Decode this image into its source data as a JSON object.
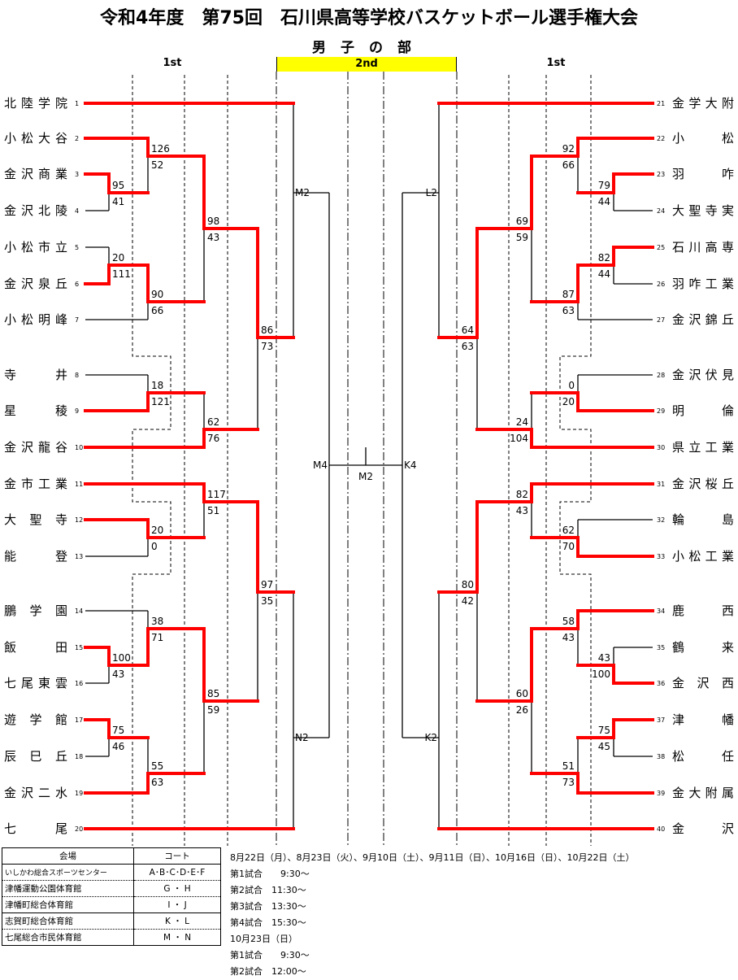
{
  "title": "令和4年度　第75回　石川県高等学校バスケットボール選手権大会",
  "division": "男子の部",
  "rounds": {
    "left": "1st",
    "center": "2nd",
    "right": "1st"
  },
  "colors": {
    "winner_line": "#ff0000",
    "round2_bar": "#ffff00",
    "line": "#000000"
  },
  "left": {
    "teams": [
      {
        "no": "1",
        "name": "北陸学院"
      },
      {
        "no": "2",
        "name": "小松大谷"
      },
      {
        "no": "3",
        "name": "金沢商業"
      },
      {
        "no": "4",
        "name": "金沢北陵"
      },
      {
        "no": "5",
        "name": "小松市立"
      },
      {
        "no": "6",
        "name": "金沢泉丘"
      },
      {
        "no": "7",
        "name": "小松明峰"
      },
      {
        "no": "8",
        "name": "寺井"
      },
      {
        "no": "9",
        "name": "星稜"
      },
      {
        "no": "10",
        "name": "金沢龍谷"
      },
      {
        "no": "11",
        "name": "金市工業"
      },
      {
        "no": "12",
        "name": "大聖寺"
      },
      {
        "no": "13",
        "name": "能登"
      },
      {
        "no": "14",
        "name": "鵬学園"
      },
      {
        "no": "15",
        "name": "飯田"
      },
      {
        "no": "16",
        "name": "七尾東雲"
      },
      {
        "no": "17",
        "name": "遊学館"
      },
      {
        "no": "18",
        "name": "辰巳丘"
      },
      {
        "no": "19",
        "name": "金沢二水"
      },
      {
        "no": "20",
        "name": "七尾"
      }
    ],
    "matches": {
      "R1a": {
        "scores": [
          "95",
          "41"
        ]
      },
      "R1b": {
        "scores": [
          "20",
          "111"
        ]
      },
      "R1c": {
        "scores": [
          "100",
          "43"
        ]
      },
      "R1d": {
        "scores": [
          "75",
          "46"
        ]
      },
      "R2a": {
        "scores": [
          "126",
          "52"
        ]
      },
      "R2b": {
        "scores": [
          "90",
          "66"
        ]
      },
      "R2c": {
        "scores": [
          "18",
          "121"
        ]
      },
      "R2d": {
        "scores": [
          "20",
          "0"
        ]
      },
      "R2e": {
        "scores": [
          "38",
          "71"
        ]
      },
      "R2f": {
        "scores": [
          "55",
          "63"
        ]
      },
      "R3a": {
        "scores": [
          "98",
          "43"
        ]
      },
      "R3b": {
        "scores": [
          "62",
          "76"
        ]
      },
      "R3c": {
        "scores": [
          "117",
          "51"
        ]
      },
      "R3d": {
        "scores": [
          "85",
          "59"
        ]
      },
      "R4a": {
        "scores": [
          "86",
          "73"
        ]
      },
      "R4b": {
        "scores": [
          "97",
          "35"
        ]
      },
      "R5a": {
        "court": "M2"
      },
      "R5b": {
        "court": "N2"
      },
      "F": {
        "court": "M4"
      }
    }
  },
  "right": {
    "teams": [
      {
        "no": "21",
        "name": "金学大附"
      },
      {
        "no": "22",
        "name": "小松"
      },
      {
        "no": "23",
        "name": "羽咋"
      },
      {
        "no": "24",
        "name": "大聖寺実"
      },
      {
        "no": "25",
        "name": "石川高専"
      },
      {
        "no": "26",
        "name": "羽咋工業"
      },
      {
        "no": "27",
        "name": "金沢錦丘"
      },
      {
        "no": "28",
        "name": "金沢伏見"
      },
      {
        "no": "29",
        "name": "明倫"
      },
      {
        "no": "30",
        "name": "県立工業"
      },
      {
        "no": "31",
        "name": "金沢桜丘"
      },
      {
        "no": "32",
        "name": "輪島"
      },
      {
        "no": "33",
        "name": "小松工業"
      },
      {
        "no": "34",
        "name": "鹿西"
      },
      {
        "no": "35",
        "name": "鶴来"
      },
      {
        "no": "36",
        "name": "金沢西"
      },
      {
        "no": "37",
        "name": "津幡"
      },
      {
        "no": "38",
        "name": "松任"
      },
      {
        "no": "39",
        "name": "金大附属"
      },
      {
        "no": "40",
        "name": "金沢"
      }
    ],
    "matches": {
      "R1a": {
        "scores": [
          "79",
          "44"
        ]
      },
      "R1b": {
        "scores": [
          "82",
          "44"
        ]
      },
      "R1c": {
        "scores": [
          "43",
          "100"
        ]
      },
      "R1d": {
        "scores": [
          "75",
          "45"
        ]
      },
      "R2a": {
        "scores": [
          "92",
          "66"
        ]
      },
      "R2b": {
        "scores": [
          "87",
          "63"
        ]
      },
      "R2c": {
        "scores": [
          "0",
          "20"
        ]
      },
      "R2d": {
        "scores": [
          "62",
          "70"
        ]
      },
      "R2e": {
        "scores": [
          "58",
          "43"
        ]
      },
      "R2f": {
        "scores": [
          "51",
          "73"
        ]
      },
      "R3a": {
        "scores": [
          "69",
          "59"
        ]
      },
      "R3b": {
        "scores": [
          "24",
          "104"
        ]
      },
      "R3c": {
        "scores": [
          "82",
          "43"
        ]
      },
      "R3d": {
        "scores": [
          "60",
          "26"
        ]
      },
      "R4a": {
        "scores": [
          "64",
          "63"
        ]
      },
      "R4b": {
        "scores": [
          "80",
          "42"
        ]
      },
      "R5a": {
        "court": "L2"
      },
      "R5b": {
        "court": "K2"
      },
      "F": {
        "court": "K4"
      }
    }
  },
  "final": {
    "court": "M2"
  },
  "venues": {
    "headers": [
      "会場",
      "コート"
    ],
    "rows": [
      [
        "いしかわ総合スポーツセンター",
        "A･B･C･D･E･F"
      ],
      [
        "津幡運動公園体育館",
        "G ・ H"
      ],
      [
        "津幡町総合体育館",
        "I ・ J"
      ],
      [
        "志賀町総合体育館",
        "K ・ L"
      ],
      [
        "七尾総合市民体育館",
        "M ・ N"
      ]
    ]
  },
  "schedule": [
    "8月22日（月）、8月23日（火）、9月10日（土）、9月11日（日）、10月16日（日）、10月22日（土）",
    "第1試合　　9:30～",
    "第2試合　11:30～",
    "第3試合　13:30～",
    "第4試合　15:30～",
    "10月23日（日）",
    "第1試合　　9:30～",
    "第2試合　12:00～"
  ]
}
